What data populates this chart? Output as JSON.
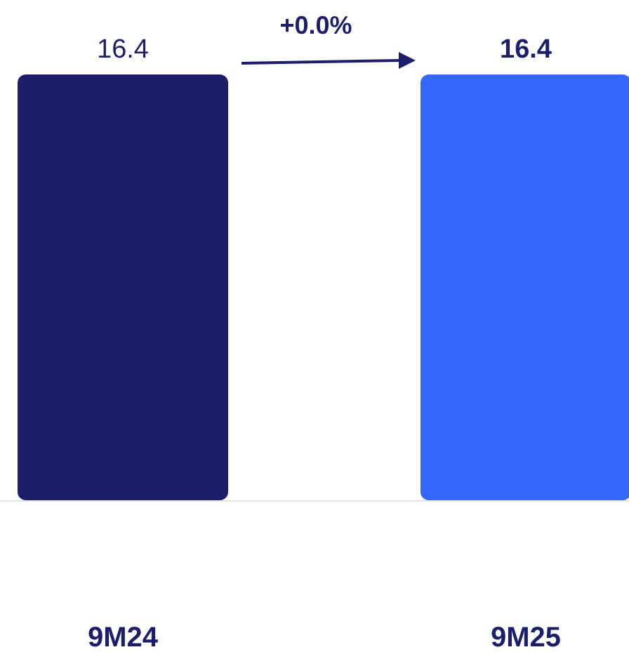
{
  "chart_data": {
    "type": "bar",
    "categories": [
      "9M24",
      "9M25"
    ],
    "values": [
      16.4,
      16.4
    ],
    "colors": [
      "#1c1e6b",
      "#3367fe"
    ],
    "data_labels": true,
    "tick_labels": "x",
    "annotations": [
      "+0.0%"
    ]
  }
}
